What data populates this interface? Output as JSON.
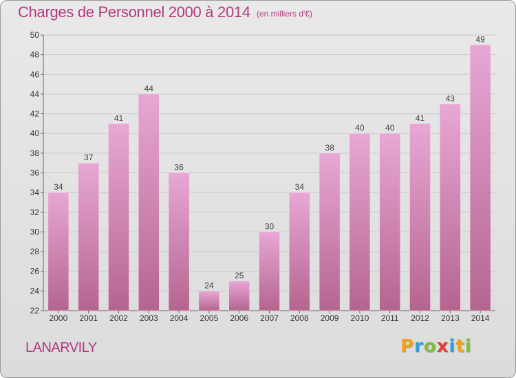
{
  "header": {
    "title": "Charges de Personnel 2000 à 2014",
    "subtitle": "(en milliers d'€)"
  },
  "footer": {
    "commune": "LANARVILY",
    "logo_letters": [
      {
        "ch": "P",
        "color": "#f4a11a"
      },
      {
        "ch": "r",
        "color": "#2f9fd8"
      },
      {
        "ch": "o",
        "color": "#7bbf3a"
      },
      {
        "ch": "x",
        "color": "#e43c39"
      },
      {
        "ch": "i",
        "color": "#2f9fd8"
      },
      {
        "ch": "t",
        "color": "#f4a11a"
      },
      {
        "ch": "i",
        "color": "#7bbf3a"
      }
    ]
  },
  "chart_data": {
    "type": "bar",
    "title": "Charges de Personnel 2000 à 2014",
    "subtitle": "(en milliers d'€)",
    "categories": [
      "2000",
      "2001",
      "2002",
      "2003",
      "2004",
      "2005",
      "2006",
      "2007",
      "2008",
      "2009",
      "2010",
      "2011",
      "2012",
      "2013",
      "2014"
    ],
    "values": [
      34,
      37,
      41,
      44,
      36,
      24,
      25,
      30,
      34,
      38,
      40,
      40,
      41,
      43,
      49
    ],
    "ylim": [
      22,
      50
    ],
    "yticks": [
      22,
      24,
      26,
      28,
      30,
      32,
      34,
      36,
      38,
      40,
      42,
      44,
      46,
      48,
      50
    ],
    "grid": true,
    "bar_color_top": "#e8a7d5",
    "bar_color_bottom": "#b4658f",
    "text_color": "#b23a7e"
  }
}
